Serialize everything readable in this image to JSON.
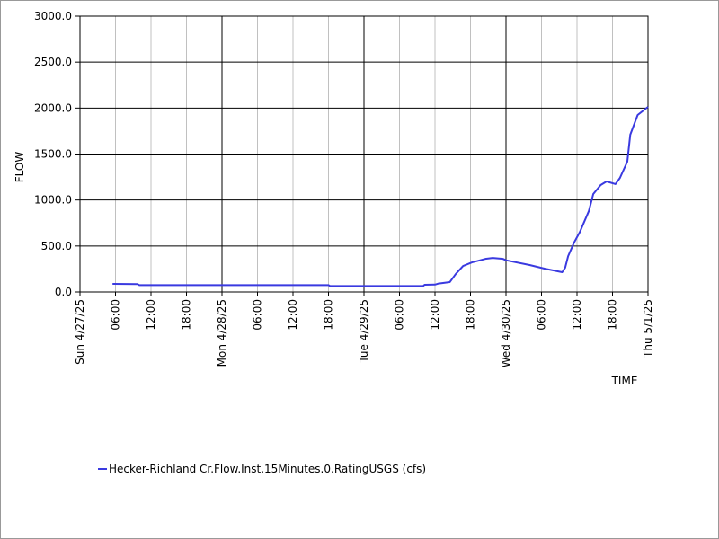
{
  "chart_data": {
    "type": "line",
    "x_label": "TIME",
    "y_label": "FLOW",
    "xlim": [
      "4/27/25 00:00",
      "5/1/25 00:00"
    ],
    "xticks": [
      {
        "value": "4/27/25 00:00",
        "label": "Sun 4/27/25"
      },
      {
        "value": "4/27/25 06:00",
        "label": "06:00"
      },
      {
        "value": "4/27/25 12:00",
        "label": "12:00"
      },
      {
        "value": "4/27/25 18:00",
        "label": "18:00"
      },
      {
        "value": "4/28/25 00:00",
        "label": "Mon 4/28/25"
      },
      {
        "value": "4/28/25 06:00",
        "label": "06:00"
      },
      {
        "value": "4/28/25 12:00",
        "label": "12:00"
      },
      {
        "value": "4/28/25 18:00",
        "label": "18:00"
      },
      {
        "value": "4/29/25 00:00",
        "label": "Tue 4/29/25"
      },
      {
        "value": "4/29/25 06:00",
        "label": "06:00"
      },
      {
        "value": "4/29/25 12:00",
        "label": "12:00"
      },
      {
        "value": "4/29/25 18:00",
        "label": "18:00"
      },
      {
        "value": "4/30/25 00:00",
        "label": "Wed 4/30/25"
      },
      {
        "value": "4/30/25 06:00",
        "label": "06:00"
      },
      {
        "value": "4/30/25 12:00",
        "label": "12:00"
      },
      {
        "value": "4/30/25 18:00",
        "label": "18:00"
      },
      {
        "value": "5/1/25 00:00",
        "label": "Thu 5/1/25"
      }
    ],
    "ylim": [
      0,
      3000
    ],
    "yticks": [
      {
        "value": 0,
        "label": "0.0"
      },
      {
        "value": 500,
        "label": "500.0"
      },
      {
        "value": 1000,
        "label": "1000.0"
      },
      {
        "value": 1500,
        "label": "1500.0"
      },
      {
        "value": 2000,
        "label": "2000.0"
      },
      {
        "value": 2500,
        "label": "2500.0"
      },
      {
        "value": 3000,
        "label": "3000.0"
      }
    ],
    "grid": true,
    "legend": "bottom-left",
    "x": [
      "4/27/25 05:30",
      "4/27/25 09:45",
      "4/27/25 10:00",
      "4/28/25 18:00",
      "4/28/25 18:15",
      "4/29/25 10:00",
      "4/29/25 10:15",
      "4/29/25 12:00",
      "4/29/25 12:30",
      "4/29/25 14:30",
      "4/29/25 15:30",
      "4/29/25 16:45",
      "4/29/25 18:15",
      "4/29/25 20:30",
      "4/29/25 21:45",
      "4/29/25 23:30",
      "4/30/25 00:00",
      "4/30/25 04:00",
      "4/30/25 06:30",
      "4/30/25 08:45",
      "4/30/25 09:30",
      "4/30/25 10:00",
      "4/30/25 10:30",
      "4/30/25 11:30",
      "4/30/25 12:30",
      "4/30/25 14:00",
      "4/30/25 14:45",
      "4/30/25 16:00",
      "4/30/25 17:00",
      "4/30/25 18:30",
      "4/30/25 19:15",
      "4/30/25 20:30",
      "4/30/25 21:00",
      "4/30/25 22:15",
      "5/1/25 00:00"
    ],
    "series": [
      {
        "name": "Hecker-Richland Cr.Flow.Inst.15Minutes.0.RatingUSGS (cfs)",
        "color": "#3a3ae0",
        "values": [
          88,
          85,
          75,
          75,
          65,
          65,
          78,
          80,
          90,
          107,
          195,
          283,
          322,
          360,
          370,
          360,
          345,
          293,
          254,
          225,
          215,
          264,
          390,
          537,
          655,
          880,
          1065,
          1163,
          1202,
          1173,
          1240,
          1417,
          1710,
          1925,
          2013
        ]
      }
    ]
  }
}
